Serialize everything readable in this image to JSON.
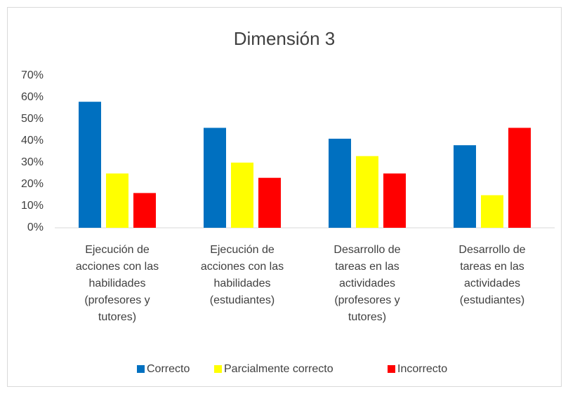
{
  "chart_data": {
    "type": "bar",
    "title": "Dimensión 3",
    "categories": [
      "Ejecución de\nacciones con las\nhabilidades\n(profesores y\ntutores)",
      "Ejecución de\nacciones con las\nhabilidades\n(estudiantes)",
      "Desarrollo de\ntareas en las\nactividades\n(profesores y\ntutores)",
      "Desarrollo de\ntareas en las\nactividades\n(estudiantes)"
    ],
    "series": [
      {
        "name": "Correcto",
        "color": "#0070c0",
        "values": [
          58,
          46,
          41,
          38
        ]
      },
      {
        "name": "Parcialmente correcto",
        "color": "#ffff00",
        "values": [
          25,
          30,
          33,
          15
        ]
      },
      {
        "name": "Incorrecto",
        "color": "#ff0000",
        "values": [
          16,
          23,
          25,
          46
        ]
      }
    ],
    "ylim": [
      0,
      70
    ],
    "yticks": [
      {
        "value": 0,
        "label": "0%"
      },
      {
        "value": 10,
        "label": "10%"
      },
      {
        "value": 20,
        "label": "20%"
      },
      {
        "value": 30,
        "label": "30%"
      },
      {
        "value": 40,
        "label": "40%"
      },
      {
        "value": 50,
        "label": "50%"
      },
      {
        "value": 60,
        "label": "60%"
      },
      {
        "value": 70,
        "label": "70%"
      }
    ],
    "grid": false,
    "legend": "bottom"
  }
}
